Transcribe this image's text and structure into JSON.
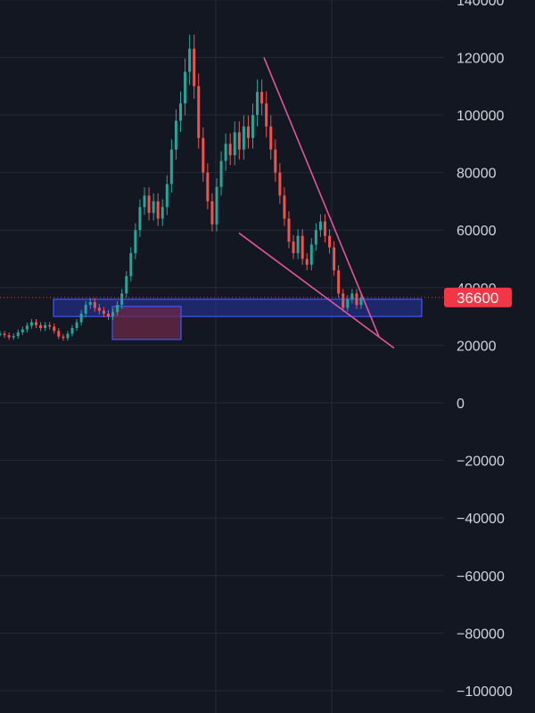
{
  "chart_data": {
    "type": "candlestick",
    "y_axis": {
      "position": "right",
      "ticks": [
        140000,
        120000,
        100000,
        80000,
        60000,
        40000,
        20000,
        0,
        -20000,
        -40000,
        -60000,
        -80000,
        -100000
      ],
      "tick_labels": [
        "140000",
        "120000",
        "100000",
        "80000",
        "60000",
        "40000",
        "20000",
        "0",
        "−20000",
        "−40000",
        "−60000",
        "−80000",
        "−100000"
      ],
      "range": [
        -104000,
        141000
      ]
    },
    "grid": true,
    "current_price": {
      "value": 36600,
      "label": "36600",
      "color": "#f23645"
    },
    "colors": {
      "background": "#131722",
      "grid": "#252a36",
      "up": "#26a69a",
      "down": "#ef5350",
      "trendline": "#e0559b",
      "zone_fill": "#2a34a8",
      "zone_border": "#3e57ff",
      "zone2_fill": "#6b2846"
    },
    "series": [
      {
        "y": 24000,
        "c": 24000
      },
      {
        "y": 23500,
        "c": 23500
      },
      {
        "y": 22800,
        "c": 22800
      },
      {
        "y": 23200,
        "c": 23200
      },
      {
        "y": 24500,
        "c": 24500
      },
      {
        "y": 25500,
        "c": 25500
      },
      {
        "y": 26800,
        "c": 26800
      },
      {
        "y": 28000,
        "c": 28000
      },
      {
        "y": 27000,
        "c": 27000
      },
      {
        "y": 26000,
        "c": 26000
      },
      {
        "y": 27000,
        "c": 27000
      },
      {
        "y": 26500,
        "c": 26500
      },
      {
        "y": 25000,
        "c": 25000
      },
      {
        "y": 23000,
        "c": 23000
      },
      {
        "y": 22500,
        "c": 22500
      },
      {
        "y": 24000,
        "c": 24000
      },
      {
        "y": 26000,
        "c": 26000
      },
      {
        "y": 28000,
        "c": 28000
      },
      {
        "y": 31000,
        "c": 31000
      },
      {
        "y": 34000,
        "c": 34000
      },
      {
        "y": 35000,
        "c": 35000
      },
      {
        "y": 33000,
        "c": 33000
      },
      {
        "y": 32000,
        "c": 32000
      },
      {
        "y": 31000,
        "c": 31000
      },
      {
        "y": 30000,
        "c": 30000
      },
      {
        "y": 31500,
        "c": 31500
      },
      {
        "y": 34000,
        "c": 34000
      },
      {
        "y": 38000,
        "c": 38000
      },
      {
        "y": 44000,
        "c": 44000
      },
      {
        "y": 52000,
        "c": 52000
      },
      {
        "y": 60000,
        "c": 60000
      },
      {
        "y": 68000,
        "c": 68000
      },
      {
        "y": 72000,
        "c": 72000
      },
      {
        "y": 66000,
        "c": 66000
      },
      {
        "y": 70000,
        "c": 70000
      },
      {
        "y": 64000,
        "c": 64000
      },
      {
        "y": 68000,
        "c": 68000
      },
      {
        "y": 76000,
        "c": 76000
      },
      {
        "y": 88000,
        "c": 88000
      },
      {
        "y": 98000,
        "c": 98000
      },
      {
        "y": 104000,
        "c": 104000
      },
      {
        "y": 115000,
        "c": 115000
      },
      {
        "y": 123000,
        "c": 123000
      },
      {
        "y": 110000,
        "c": 110000
      },
      {
        "y": 92000,
        "c": 92000
      },
      {
        "y": 80000,
        "c": 80000
      },
      {
        "y": 70000,
        "c": 70000
      },
      {
        "y": 62000,
        "c": 62000
      },
      {
        "y": 75000,
        "c": 75000
      },
      {
        "y": 84000,
        "c": 84000
      },
      {
        "y": 90000,
        "c": 90000
      },
      {
        "y": 86000,
        "c": 86000
      },
      {
        "y": 94000,
        "c": 94000
      },
      {
        "y": 88000,
        "c": 88000
      },
      {
        "y": 96000,
        "c": 96000
      },
      {
        "y": 92000,
        "c": 92000
      },
      {
        "y": 100000,
        "c": 100000
      },
      {
        "y": 108000,
        "c": 108000
      },
      {
        "y": 104000,
        "c": 104000
      },
      {
        "y": 96000,
        "c": 96000
      },
      {
        "y": 88000,
        "c": 88000
      },
      {
        "y": 80000,
        "c": 80000
      },
      {
        "y": 72000,
        "c": 72000
      },
      {
        "y": 64000,
        "c": 64000
      },
      {
        "y": 56000,
        "c": 56000
      },
      {
        "y": 52000,
        "c": 52000
      },
      {
        "y": 58000,
        "c": 58000
      },
      {
        "y": 50000,
        "c": 50000
      },
      {
        "y": 48000,
        "c": 48000
      },
      {
        "y": 55000,
        "c": 55000
      },
      {
        "y": 60000,
        "c": 60000
      },
      {
        "y": 63000,
        "c": 63000
      },
      {
        "y": 58000,
        "c": 58000
      },
      {
        "y": 54000,
        "c": 54000
      },
      {
        "y": 46000,
        "c": 46000
      },
      {
        "y": 38000,
        "c": 38000
      },
      {
        "y": 33000,
        "c": 33000
      },
      {
        "y": 36000,
        "c": 36000
      },
      {
        "y": 38000,
        "c": 38000
      },
      {
        "y": 34000,
        "c": 34000
      },
      {
        "y": 36600,
        "c": 36600
      }
    ],
    "support_zone": {
      "y_top": 36000,
      "y_bottom": 30000
    },
    "demand_zone": {
      "y_top": 33500,
      "y_bottom": 22000
    },
    "wedge": {
      "upper_line": {
        "from": 120000,
        "to": 23000
      },
      "lower_line": {
        "from": 59000,
        "to": 19000
      }
    }
  }
}
